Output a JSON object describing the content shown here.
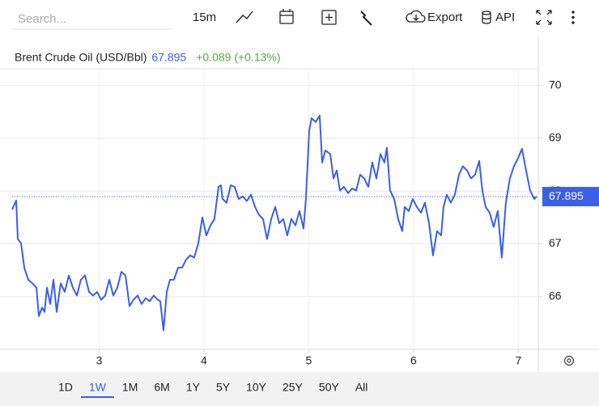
{
  "toolbar": {
    "search_placeholder": "Search...",
    "interval": "15m",
    "export": "Export",
    "api": "API"
  },
  "ranges": {
    "items": [
      "1D",
      "1W",
      "1M",
      "6M",
      "1Y",
      "5Y",
      "10Y",
      "25Y",
      "50Y",
      "All"
    ],
    "selected": "1W"
  },
  "chart_data": {
    "type": "line",
    "last_price": 67.895,
    "change": "+0.089 (+0.13%)",
    "x": [
      2.17,
      2.209,
      2.224,
      2.255,
      2.286,
      2.324,
      2.363,
      2.402,
      2.425,
      2.456,
      2.479,
      2.502,
      2.533,
      2.564,
      2.595,
      2.633,
      2.672,
      2.711,
      2.749,
      2.788,
      2.826,
      2.865,
      2.904,
      2.942,
      2.981,
      3.019,
      3.058,
      3.097,
      3.135,
      3.174,
      3.212,
      3.251,
      3.29,
      3.328,
      3.367,
      3.405,
      3.444,
      3.483,
      3.521,
      3.56,
      3.583,
      3.614,
      3.645,
      3.676,
      3.714,
      3.753,
      3.792,
      3.83,
      3.869,
      3.907,
      3.946,
      3.985,
      4.023,
      4.062,
      4.1,
      4.139,
      4.162,
      4.178,
      4.216,
      4.255,
      4.293,
      4.332,
      4.371,
      4.409,
      4.448,
      4.487,
      4.525,
      4.564,
      4.602,
      4.641,
      4.68,
      4.718,
      4.757,
      4.795,
      4.834,
      4.873,
      4.911,
      4.95,
      4.973,
      5.004,
      5.027,
      5.066,
      5.104,
      5.128,
      5.158,
      5.205,
      5.236,
      5.267,
      5.297,
      5.336,
      5.375,
      5.413,
      5.452,
      5.49,
      5.529,
      5.568,
      5.606,
      5.645,
      5.684,
      5.722,
      5.745,
      5.776,
      5.815,
      5.853,
      5.892,
      5.915,
      5.954,
      5.992,
      6.031,
      6.07,
      6.108,
      6.147,
      6.185,
      6.224,
      6.263,
      6.286,
      6.317,
      6.355,
      6.394,
      6.433,
      6.471,
      6.51,
      6.548,
      6.587,
      6.626,
      6.656,
      6.687,
      6.726,
      6.764,
      6.803,
      6.842,
      6.88,
      6.919,
      6.958,
      6.996,
      7.035,
      7.073,
      7.112,
      7.151,
      7.174
    ],
    "series": [
      {
        "name": "Brent Crude Oil (USD/Bbl)",
        "color": "#3b5fe6",
        "values": [
          67.65,
          67.82,
          67.09,
          67.01,
          66.55,
          66.32,
          66.25,
          66.17,
          65.63,
          65.79,
          65.71,
          66.17,
          65.86,
          66.32,
          65.71,
          66.25,
          66.09,
          66.4,
          66.17,
          66.02,
          66.32,
          66.4,
          66.09,
          66.02,
          66.09,
          65.94,
          66.02,
          66.32,
          66.02,
          66.17,
          66.47,
          66.4,
          65.82,
          65.94,
          66.02,
          65.86,
          65.97,
          65.91,
          66.02,
          65.94,
          65.91,
          65.36,
          66.09,
          66.32,
          66.32,
          66.55,
          66.55,
          66.7,
          66.78,
          66.74,
          67.01,
          67.5,
          67.16,
          67.35,
          67.47,
          68.08,
          68.11,
          67.85,
          67.78,
          68.11,
          68.08,
          67.85,
          67.9,
          67.81,
          67.93,
          67.7,
          67.55,
          67.47,
          67.09,
          67.47,
          67.7,
          67.39,
          67.47,
          67.16,
          67.47,
          67.35,
          67.62,
          67.29,
          67.85,
          69.15,
          69.38,
          69.31,
          69.43,
          68.54,
          68.77,
          68.7,
          68.24,
          68.39,
          68.01,
          68.08,
          67.96,
          68.05,
          68.01,
          68.31,
          68.24,
          68.08,
          68.54,
          68.24,
          68.7,
          68.54,
          68.82,
          68.01,
          67.85,
          67.47,
          67.24,
          67.7,
          67.62,
          67.85,
          67.7,
          67.59,
          67.78,
          67.39,
          66.78,
          67.24,
          67.16,
          67.7,
          67.93,
          67.78,
          67.93,
          68.31,
          68.47,
          68.39,
          68.24,
          68.31,
          68.57,
          68.01,
          67.7,
          67.59,
          67.32,
          67.62,
          66.74,
          67.78,
          68.24,
          68.47,
          68.62,
          68.8,
          68.39,
          68.01,
          67.85,
          67.895
        ]
      }
    ],
    "xlim": [
      2.17,
      7.19
    ],
    "xticks": [
      3,
      4,
      5,
      6,
      7
    ],
    "ylim": [
      65,
      70.9
    ],
    "yticks": [
      66,
      67,
      68,
      69,
      70
    ],
    "grid": true
  }
}
